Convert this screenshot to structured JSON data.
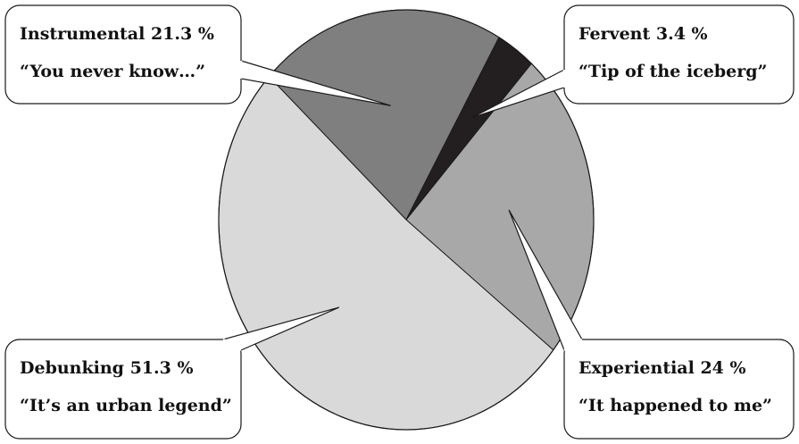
{
  "chart_data": {
    "type": "pie",
    "title": "",
    "legend": "callout-boxes",
    "slices": [
      {
        "name": "Instrumental",
        "value": 21.3,
        "value_label": "21.3 %",
        "quote": "“You never know…”",
        "color": "#7f7f7f"
      },
      {
        "name": "Fervent",
        "value": 3.4,
        "value_label": "3.4 %",
        "quote": "“Tip of the iceberg”",
        "color": "#231f20"
      },
      {
        "name": "Experiential",
        "value": 24,
        "value_label": "24 %",
        "quote": "“It happened to me”",
        "color": "#a8a8a8"
      },
      {
        "name": "Debunking",
        "value": 51.3,
        "value_label": "51.3 %",
        "quote": "“It’s an urban legend”",
        "color": "#d9d9d9"
      }
    ]
  }
}
